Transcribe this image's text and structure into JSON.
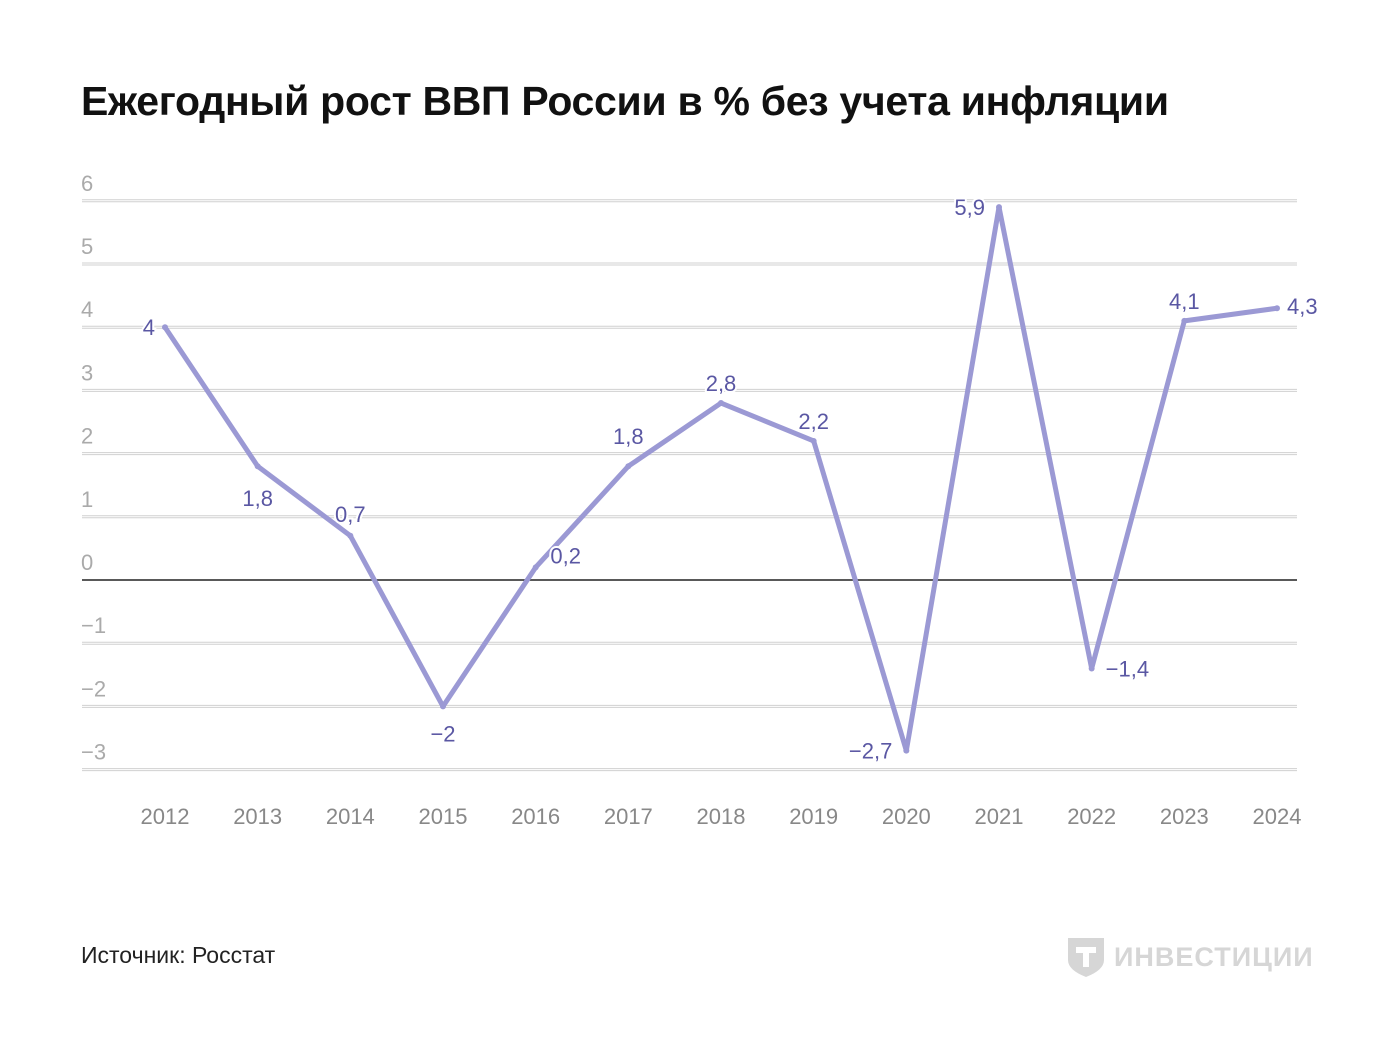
{
  "chart_data": {
    "type": "line",
    "title": "Ежегодный рост ВВП России в % без учета инфляции",
    "xlabel": "",
    "ylabel": "",
    "categories": [
      "2012",
      "2013",
      "2014",
      "2015",
      "2016",
      "2017",
      "2018",
      "2019",
      "2020",
      "2021",
      "2022",
      "2023",
      "2024"
    ],
    "values": [
      4,
      1.8,
      0.7,
      -2,
      0.2,
      1.8,
      2.8,
      2.2,
      -2.7,
      5.9,
      -1.4,
      4.1,
      4.3
    ],
    "data_labels": [
      "4",
      "1,8",
      "0,7",
      "−2",
      "0,2",
      "1,8",
      "2,8",
      "2,2",
      "−2,7",
      "5,9",
      "−1,4",
      "4,1",
      "4,3"
    ],
    "ylim": [
      -3,
      6
    ],
    "yticks": [
      6,
      5,
      4,
      3,
      2,
      1,
      0,
      -1,
      -2,
      -3
    ],
    "ytick_labels": [
      "6",
      "5",
      "4",
      "3",
      "2",
      "1",
      "0",
      "−1",
      "−2",
      "−3"
    ],
    "grid": true,
    "line_color": "#9b99d4",
    "label_color": "#5a57a3"
  },
  "footer": {
    "source": "Источник: Росстат",
    "logo_text": "ИНВЕСТИЦИИ"
  }
}
